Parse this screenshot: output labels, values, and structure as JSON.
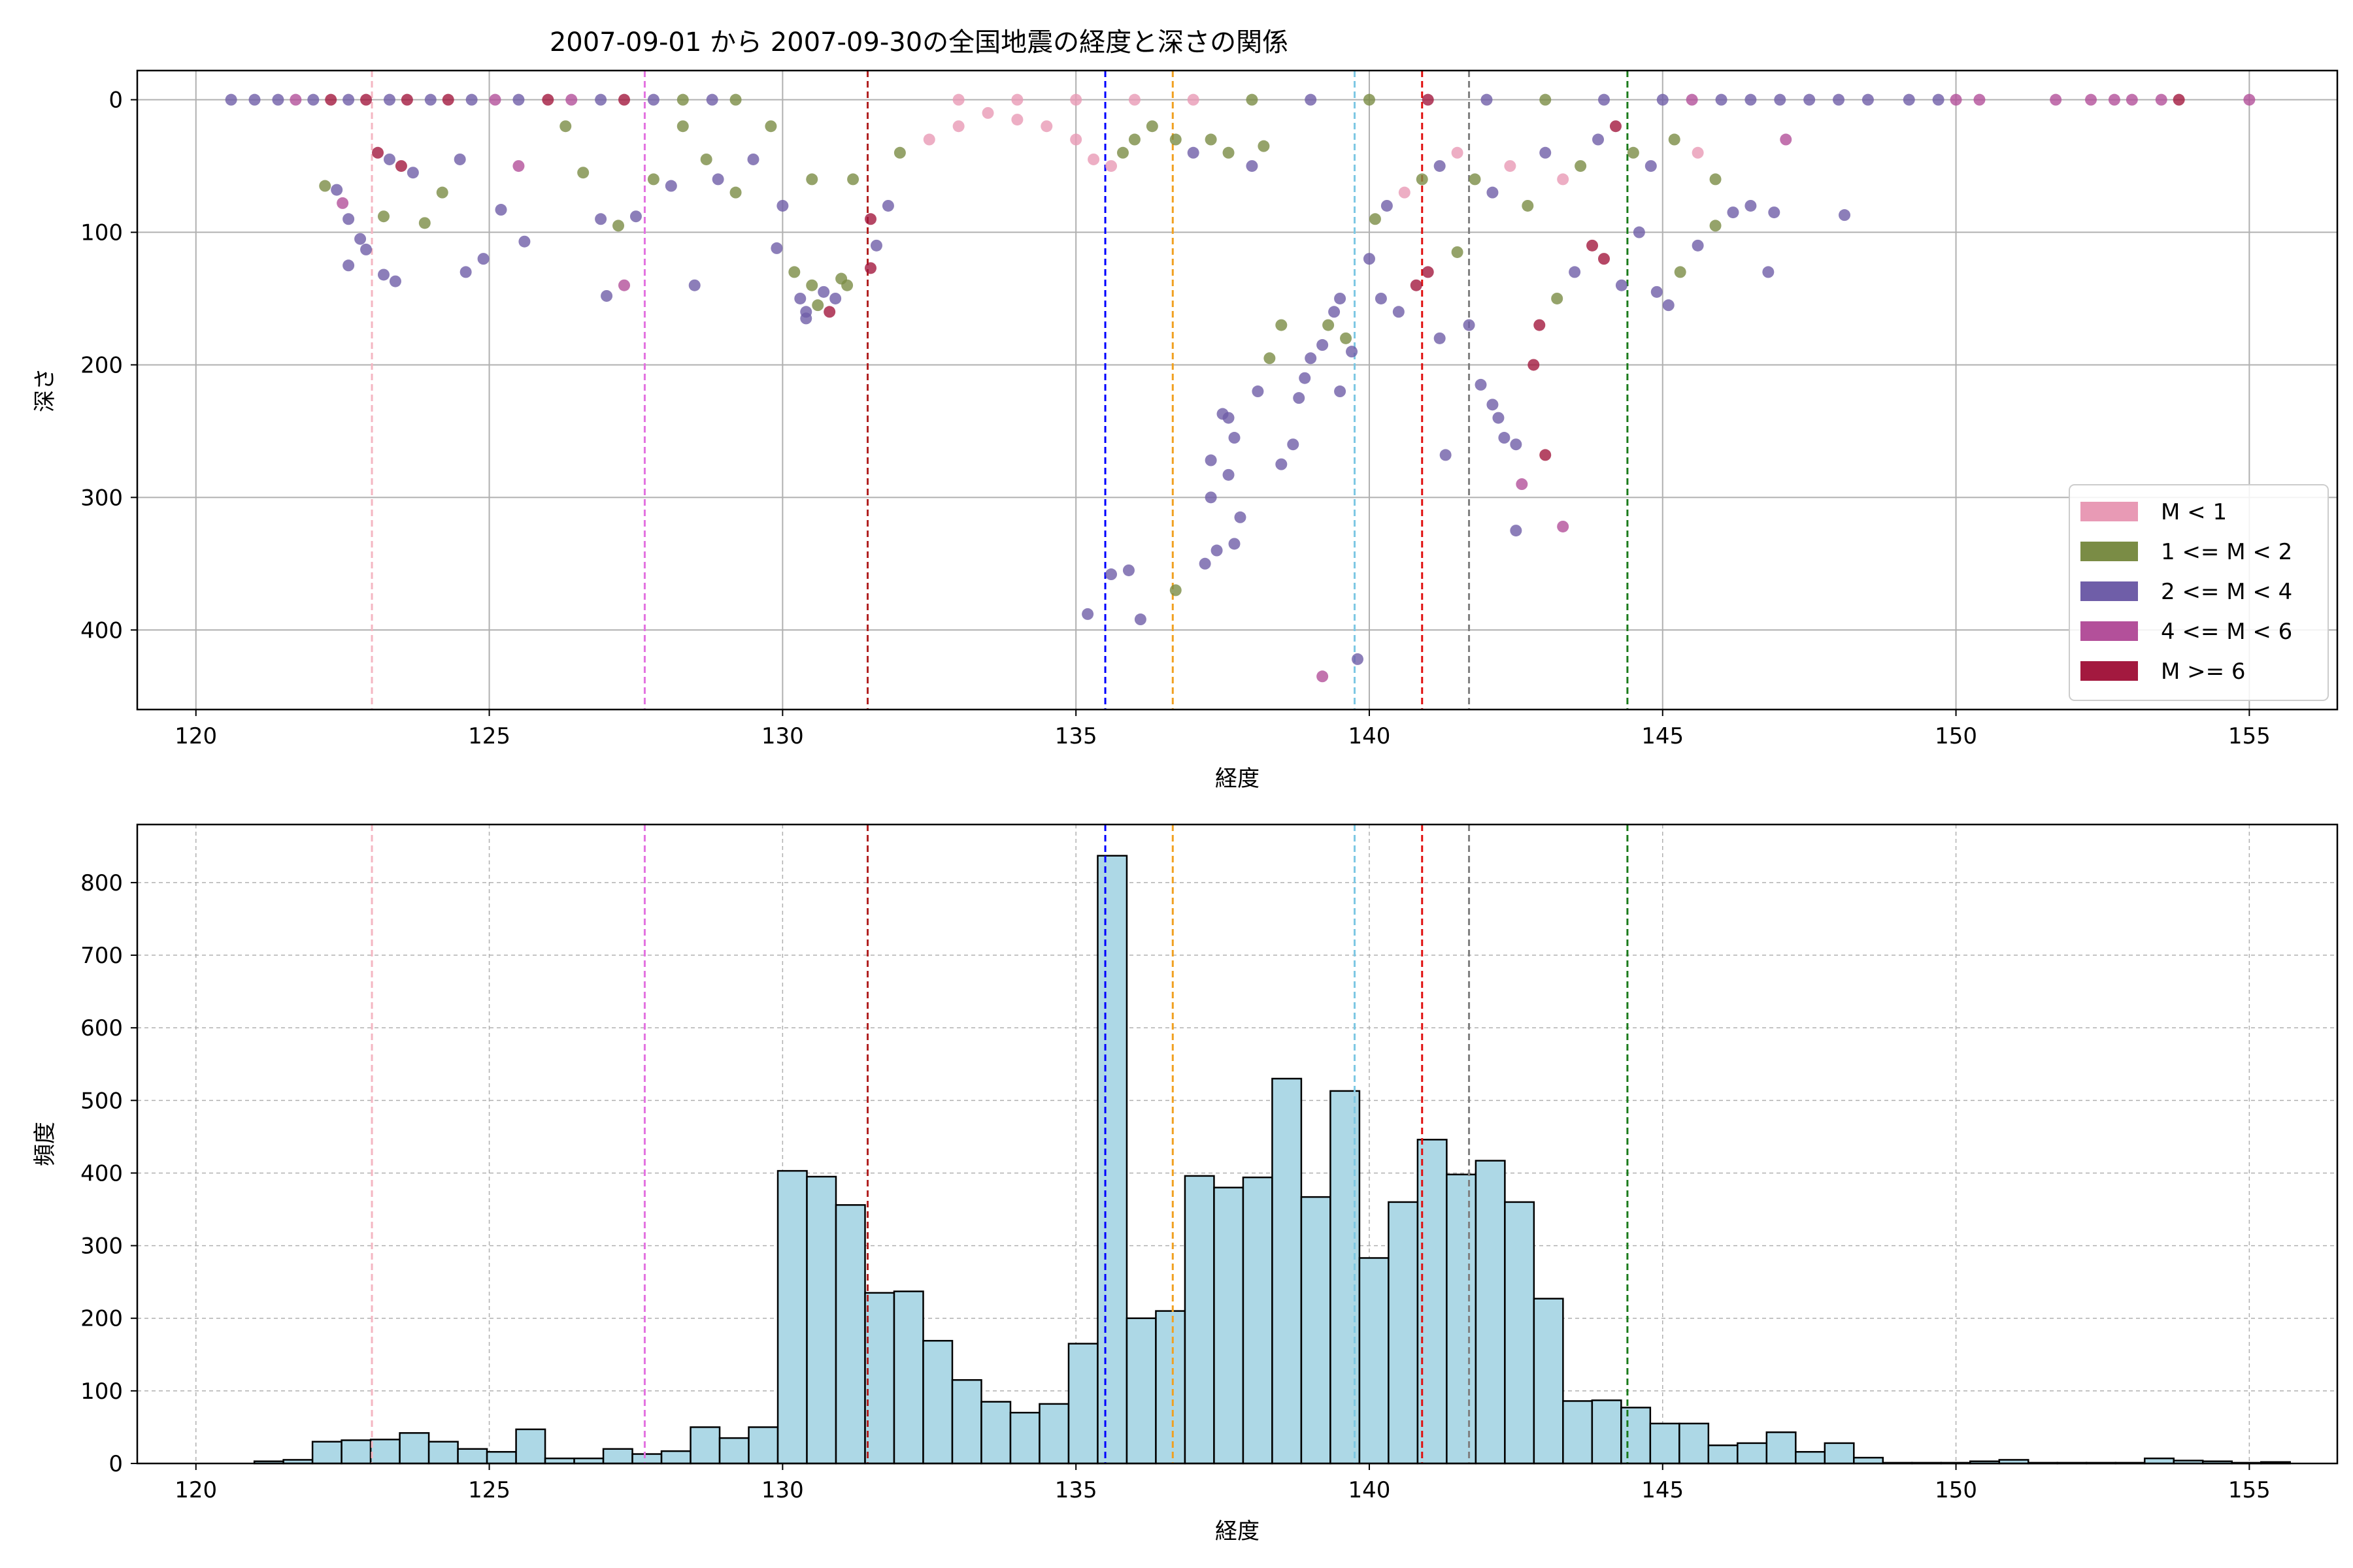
{
  "title": "2007-09-01 から 2007-09-30の全国地震の経度と深さの関係",
  "colors": {
    "m_lt1": "#e89ab5",
    "m_1_2": "#7a8c45",
    "m_2_4": "#6f5ea8",
    "m_4_6": "#b3509a",
    "m_ge6": "#a3193f",
    "hist_fill": "#add8e6",
    "grid": "#b0b0b0"
  },
  "vlines": [
    {
      "x": 123.0,
      "color": "#f4b6c2"
    },
    {
      "x": 127.65,
      "color": "#e372e0"
    },
    {
      "x": 131.45,
      "color": "#b22222"
    },
    {
      "x": 135.5,
      "color": "#0000ff"
    },
    {
      "x": 136.65,
      "color": "#f0a020"
    },
    {
      "x": 139.75,
      "color": "#7ec8e3"
    },
    {
      "x": 140.9,
      "color": "#e01010"
    },
    {
      "x": 141.7,
      "color": "#808080"
    },
    {
      "x": 144.4,
      "color": "#1a7a1a"
    }
  ],
  "chart_data": [
    {
      "type": "scatter",
      "xlabel": "経度",
      "ylabel": "深さ",
      "xlim": [
        119,
        156.5
      ],
      "ylim": [
        460,
        -22
      ],
      "y_inverted": true,
      "grid": true,
      "legend_position": "lower-right",
      "xticks": [
        120,
        125,
        130,
        135,
        140,
        145,
        150,
        155
      ],
      "yticks": [
        0,
        100,
        200,
        300,
        400
      ],
      "legend": [
        {
          "label": "M < 1",
          "color_key": "m_lt1"
        },
        {
          "label": "1 <= M < 2",
          "color_key": "m_1_2"
        },
        {
          "label": "2 <= M < 4",
          "color_key": "m_2_4"
        },
        {
          "label": "4 <= M < 6",
          "color_key": "m_4_6"
        },
        {
          "label": "M >= 6",
          "color_key": "m_ge6"
        }
      ],
      "points": [
        [
          120.6,
          0,
          2
        ],
        [
          121.0,
          0,
          2
        ],
        [
          121.4,
          0,
          2
        ],
        [
          121.7,
          0,
          3
        ],
        [
          122.0,
          0,
          2
        ],
        [
          122.3,
          0,
          4
        ],
        [
          122.6,
          0,
          2
        ],
        [
          122.9,
          0,
          4
        ],
        [
          123.3,
          0,
          2
        ],
        [
          123.6,
          0,
          4
        ],
        [
          124.0,
          0,
          2
        ],
        [
          124.3,
          0,
          4
        ],
        [
          124.7,
          0,
          2
        ],
        [
          125.1,
          0,
          3
        ],
        [
          125.5,
          0,
          2
        ],
        [
          126.0,
          0,
          4
        ],
        [
          126.4,
          0,
          3
        ],
        [
          126.9,
          0,
          2
        ],
        [
          127.3,
          0,
          4
        ],
        [
          127.8,
          0,
          2
        ],
        [
          128.3,
          0,
          1
        ],
        [
          128.8,
          0,
          2
        ],
        [
          129.2,
          0,
          1
        ],
        [
          133.0,
          0,
          0
        ],
        [
          134.0,
          0,
          0
        ],
        [
          135.0,
          0,
          0
        ],
        [
          136.0,
          0,
          0
        ],
        [
          137.0,
          0,
          0
        ],
        [
          138.0,
          0,
          1
        ],
        [
          139.0,
          0,
          2
        ],
        [
          140.0,
          0,
          1
        ],
        [
          141.0,
          0,
          4
        ],
        [
          142.0,
          0,
          2
        ],
        [
          143.0,
          0,
          1
        ],
        [
          144.0,
          0,
          2
        ],
        [
          145.0,
          0,
          2
        ],
        [
          145.5,
          0,
          3
        ],
        [
          146.0,
          0,
          2
        ],
        [
          146.5,
          0,
          2
        ],
        [
          147.0,
          0,
          2
        ],
        [
          147.5,
          0,
          2
        ],
        [
          148.0,
          0,
          2
        ],
        [
          148.5,
          0,
          2
        ],
        [
          149.2,
          0,
          2
        ],
        [
          149.7,
          0,
          2
        ],
        [
          150.0,
          0,
          3
        ],
        [
          150.4,
          0,
          3
        ],
        [
          151.7,
          0,
          3
        ],
        [
          152.3,
          0,
          3
        ],
        [
          152.7,
          0,
          3
        ],
        [
          153.0,
          0,
          3
        ],
        [
          153.5,
          0,
          3
        ],
        [
          153.8,
          0,
          4
        ],
        [
          155.0,
          0,
          3
        ],
        [
          122.2,
          65,
          1
        ],
        [
          122.4,
          68,
          2
        ],
        [
          122.5,
          78,
          3
        ],
        [
          122.6,
          90,
          2
        ],
        [
          122.8,
          105,
          2
        ],
        [
          122.9,
          113,
          2
        ],
        [
          122.6,
          125,
          2
        ],
        [
          123.1,
          40,
          4
        ],
        [
          123.3,
          45,
          2
        ],
        [
          123.5,
          50,
          4
        ],
        [
          123.7,
          55,
          2
        ],
        [
          123.2,
          132,
          2
        ],
        [
          123.4,
          137,
          2
        ],
        [
          123.9,
          93,
          1
        ],
        [
          124.2,
          70,
          1
        ],
        [
          124.5,
          45,
          2
        ],
        [
          124.6,
          130,
          2
        ],
        [
          124.9,
          120,
          2
        ],
        [
          125.2,
          83,
          2
        ],
        [
          125.5,
          50,
          3
        ],
        [
          125.6,
          107,
          2
        ],
        [
          123.2,
          88,
          1
        ],
        [
          126.3,
          20,
          1
        ],
        [
          126.6,
          55,
          1
        ],
        [
          126.9,
          90,
          2
        ],
        [
          127.0,
          148,
          2
        ],
        [
          127.2,
          95,
          1
        ],
        [
          127.3,
          140,
          3
        ],
        [
          127.5,
          88,
          2
        ],
        [
          127.8,
          60,
          1
        ],
        [
          128.1,
          65,
          2
        ],
        [
          128.3,
          20,
          1
        ],
        [
          128.5,
          140,
          2
        ],
        [
          128.7,
          45,
          1
        ],
        [
          128.9,
          60,
          2
        ],
        [
          129.2,
          70,
          1
        ],
        [
          129.5,
          45,
          2
        ],
        [
          129.8,
          20,
          1
        ],
        [
          130.2,
          130,
          1
        ],
        [
          130.3,
          150,
          2
        ],
        [
          130.4,
          160,
          2
        ],
        [
          130.5,
          140,
          1
        ],
        [
          130.6,
          155,
          1
        ],
        [
          130.7,
          145,
          2
        ],
        [
          130.8,
          160,
          4
        ],
        [
          130.9,
          150,
          2
        ],
        [
          131.0,
          135,
          1
        ],
        [
          130.4,
          165,
          2
        ],
        [
          129.9,
          112,
          2
        ],
        [
          130.0,
          80,
          2
        ],
        [
          130.5,
          60,
          1
        ],
        [
          131.2,
          60,
          1
        ],
        [
          131.5,
          90,
          4
        ],
        [
          131.5,
          127,
          4
        ],
        [
          131.6,
          110,
          2
        ],
        [
          131.1,
          140,
          1
        ],
        [
          131.8,
          80,
          2
        ],
        [
          132.0,
          40,
          1
        ],
        [
          132.5,
          30,
          0
        ],
        [
          133.0,
          20,
          0
        ],
        [
          133.5,
          10,
          0
        ],
        [
          134.0,
          15,
          0
        ],
        [
          134.5,
          20,
          0
        ],
        [
          135.0,
          30,
          0
        ],
        [
          135.3,
          45,
          0
        ],
        [
          135.6,
          50,
          0
        ],
        [
          135.8,
          40,
          1
        ],
        [
          136.0,
          30,
          1
        ],
        [
          136.3,
          20,
          1
        ],
        [
          136.7,
          30,
          1
        ],
        [
          137.0,
          40,
          2
        ],
        [
          137.3,
          30,
          1
        ],
        [
          137.6,
          40,
          1
        ],
        [
          138.0,
          50,
          2
        ],
        [
          138.2,
          35,
          1
        ],
        [
          135.6,
          358,
          2
        ],
        [
          135.9,
          355,
          2
        ],
        [
          135.2,
          388,
          2
        ],
        [
          136.1,
          392,
          2
        ],
        [
          136.7,
          370,
          1
        ],
        [
          137.2,
          350,
          2
        ],
        [
          137.4,
          340,
          2
        ],
        [
          137.3,
          300,
          2
        ],
        [
          137.3,
          272,
          2
        ],
        [
          137.6,
          283,
          2
        ],
        [
          137.8,
          315,
          2
        ],
        [
          137.7,
          335,
          2
        ],
        [
          137.5,
          237,
          2
        ],
        [
          137.6,
          240,
          2
        ],
        [
          137.7,
          255,
          2
        ],
        [
          138.1,
          220,
          2
        ],
        [
          138.3,
          195,
          1
        ],
        [
          138.5,
          170,
          1
        ],
        [
          138.5,
          275,
          2
        ],
        [
          138.8,
          225,
          2
        ],
        [
          138.9,
          210,
          2
        ],
        [
          139.0,
          195,
          2
        ],
        [
          139.2,
          185,
          2
        ],
        [
          139.3,
          170,
          1
        ],
        [
          139.4,
          160,
          2
        ],
        [
          139.5,
          150,
          2
        ],
        [
          139.6,
          180,
          1
        ],
        [
          139.7,
          190,
          2
        ],
        [
          139.8,
          422,
          2
        ],
        [
          139.2,
          435,
          3
        ],
        [
          139.5,
          220,
          2
        ],
        [
          138.7,
          260,
          2
        ],
        [
          140.0,
          120,
          2
        ],
        [
          140.2,
          150,
          2
        ],
        [
          140.5,
          160,
          2
        ],
        [
          140.8,
          140,
          4
        ],
        [
          141.0,
          130,
          4
        ],
        [
          141.2,
          180,
          2
        ],
        [
          141.5,
          115,
          1
        ],
        [
          141.7,
          170,
          2
        ],
        [
          141.9,
          215,
          2
        ],
        [
          142.1,
          230,
          2
        ],
        [
          142.2,
          240,
          2
        ],
        [
          142.3,
          255,
          2
        ],
        [
          142.5,
          260,
          2
        ],
        [
          142.6,
          290,
          3
        ],
        [
          142.5,
          325,
          2
        ],
        [
          143.0,
          268,
          4
        ],
        [
          143.3,
          322,
          3
        ],
        [
          141.3,
          268,
          2
        ],
        [
          142.8,
          200,
          4
        ],
        [
          142.9,
          170,
          4
        ],
        [
          143.2,
          150,
          1
        ],
        [
          143.5,
          130,
          2
        ],
        [
          143.8,
          110,
          4
        ],
        [
          144.0,
          120,
          4
        ],
        [
          144.3,
          140,
          2
        ],
        [
          144.6,
          100,
          2
        ],
        [
          144.9,
          145,
          2
        ],
        [
          145.1,
          155,
          2
        ],
        [
          145.3,
          130,
          1
        ],
        [
          145.6,
          110,
          2
        ],
        [
          145.9,
          95,
          1
        ],
        [
          146.2,
          85,
          2
        ],
        [
          146.5,
          80,
          2
        ],
        [
          146.8,
          130,
          2
        ],
        [
          146.9,
          85,
          2
        ],
        [
          147.1,
          30,
          3
        ],
        [
          148.1,
          87,
          2
        ],
        [
          140.1,
          90,
          1
        ],
        [
          140.3,
          80,
          2
        ],
        [
          140.6,
          70,
          0
        ],
        [
          140.9,
          60,
          1
        ],
        [
          141.2,
          50,
          2
        ],
        [
          141.5,
          40,
          0
        ],
        [
          141.8,
          60,
          1
        ],
        [
          142.1,
          70,
          2
        ],
        [
          142.4,
          50,
          0
        ],
        [
          142.7,
          80,
          1
        ],
        [
          143.0,
          40,
          2
        ],
        [
          143.3,
          60,
          0
        ],
        [
          143.6,
          50,
          1
        ],
        [
          143.9,
          30,
          2
        ],
        [
          144.2,
          20,
          4
        ],
        [
          144.5,
          40,
          1
        ],
        [
          144.8,
          50,
          2
        ],
        [
          145.2,
          30,
          1
        ],
        [
          145.6,
          40,
          0
        ],
        [
          145.9,
          60,
          1
        ]
      ]
    },
    {
      "type": "bar",
      "xlabel": "経度",
      "ylabel": "頻度",
      "xlim": [
        119,
        156.5
      ],
      "ylim": [
        0,
        880
      ],
      "grid": true,
      "xticks": [
        120,
        125,
        130,
        135,
        140,
        145,
        150,
        155
      ],
      "yticks": [
        0,
        100,
        200,
        300,
        400,
        500,
        600,
        700,
        800
      ],
      "bin_start": 120.5,
      "bin_width": 0.4957,
      "values": [
        0,
        3,
        5,
        30,
        32,
        33,
        42,
        30,
        20,
        16,
        47,
        7,
        7,
        20,
        13,
        17,
        50,
        35,
        50,
        403,
        395,
        356,
        235,
        237,
        169,
        115,
        85,
        70,
        82,
        165,
        837,
        200,
        210,
        396,
        380,
        394,
        530,
        367,
        513,
        283,
        360,
        446,
        398,
        417,
        360,
        227,
        86,
        87,
        77,
        55,
        55,
        25,
        28,
        43,
        16,
        28,
        8,
        1,
        1,
        1,
        3,
        5,
        1,
        1,
        1,
        1,
        7,
        4,
        3,
        1,
        2,
        0
      ]
    }
  ]
}
